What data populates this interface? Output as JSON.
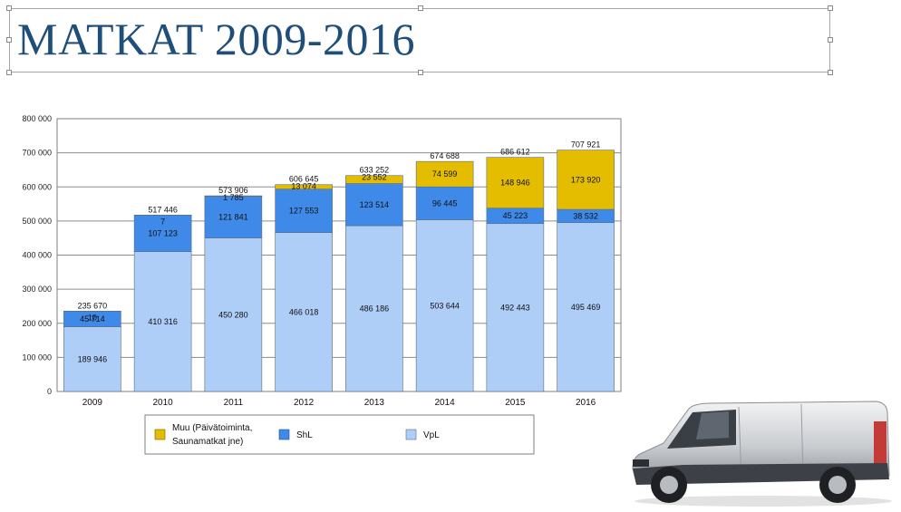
{
  "slide": {
    "title": "MATKAT 2009-2016"
  },
  "colors": {
    "title": "#1f4e79",
    "vpl": "#aecdf7",
    "shl": "#3f8ae8",
    "muu": "#e4bd00",
    "frame": "#7f7f7f"
  },
  "van_icon": "van-image",
  "chart_data": {
    "type": "bar",
    "stacked": true,
    "categories": [
      "2009",
      "2010",
      "2011",
      "2012",
      "2013",
      "2014",
      "2015",
      "2016"
    ],
    "series": [
      {
        "name": "VpL",
        "values": [
          189946,
          410316,
          450280,
          466018,
          486186,
          503644,
          492443,
          495469
        ],
        "labels": [
          "189 946",
          "410 316",
          "450 280",
          "466 018",
          "486 186",
          "503 644",
          "492 443",
          "495 469"
        ]
      },
      {
        "name": "ShL",
        "values": [
          45714,
          107123,
          121841,
          127553,
          123514,
          96445,
          45223,
          38532
        ],
        "labels": [
          "45 714",
          "107 123",
          "121 841",
          "127 553",
          "123 514",
          "96 445",
          "45 223",
          "38 532"
        ]
      },
      {
        "name": "Muu (Päivätoiminta, Saunamatkat jne)",
        "values": [
          10,
          7,
          1785,
          13074,
          23552,
          74599,
          148946,
          173920
        ],
        "labels": [
          "10",
          "7",
          "1 785",
          "13 074",
          "23 552",
          "74 599",
          "148 946",
          "173 920"
        ]
      }
    ],
    "totals": [
      "235 670",
      "517 446",
      "573 906",
      "606 645",
      "633 252",
      "674 688",
      "686 612",
      "707 921"
    ],
    "ylim": [
      0,
      800000
    ],
    "yticks": [
      "0",
      "100 000",
      "200 000",
      "300 000",
      "400 000",
      "500 000",
      "600 000",
      "700 000",
      "800 000"
    ],
    "grid": true,
    "legend_position": "bottom",
    "legend": [
      "Muu (Päivätoiminta,",
      "Saunamatkat jne)",
      "ShL",
      "VpL"
    ]
  }
}
